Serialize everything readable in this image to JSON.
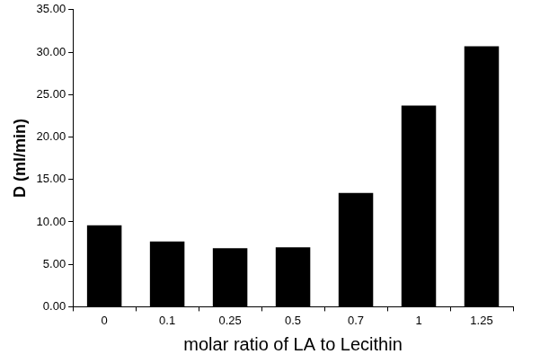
{
  "chart_data": {
    "type": "bar",
    "x_label": "molar ratio of LA to Lecithin",
    "y_label": "D (ml/min)",
    "categories": [
      "0",
      "0.1",
      "0.25",
      "0.5",
      "0.7",
      "1",
      "1.25"
    ],
    "values": [
      9.6,
      7.7,
      6.9,
      7.0,
      13.4,
      23.7,
      30.7
    ],
    "color": "#000000",
    "ylim": [
      0,
      35
    ],
    "yticks": [
      {
        "value": 0,
        "label": "0.00"
      },
      {
        "value": 5,
        "label": "5.00"
      },
      {
        "value": 10,
        "label": "10.00"
      },
      {
        "value": 15,
        "label": "15.00"
      },
      {
        "value": 20,
        "label": "20.00"
      },
      {
        "value": 25,
        "label": "25.00"
      },
      {
        "value": 30,
        "label": "30.00"
      },
      {
        "value": 35,
        "label": "35.00"
      }
    ],
    "grid": false
  }
}
